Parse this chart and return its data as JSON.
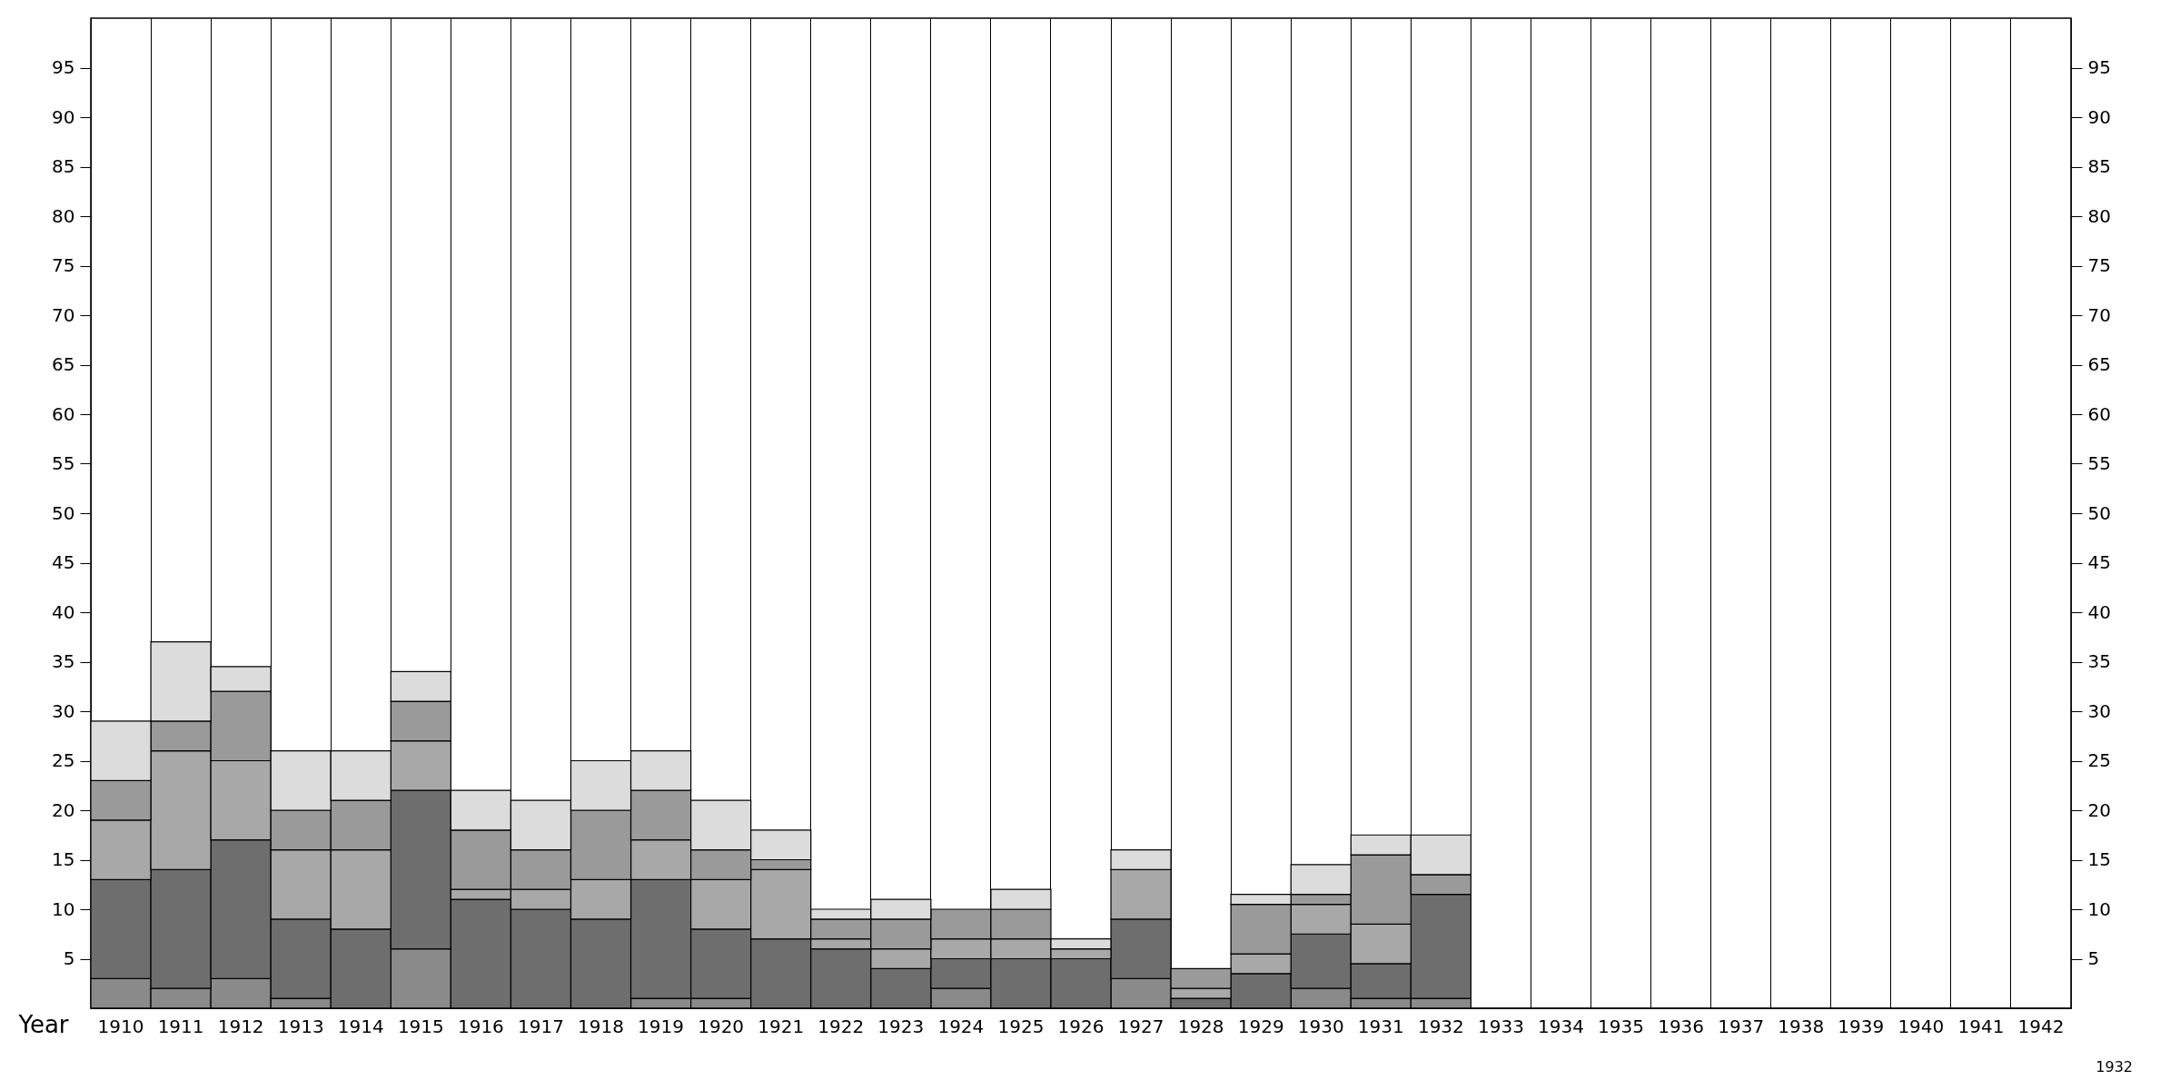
{
  "chart_data": {
    "type": "bar",
    "stacked": true,
    "xlabel": "Year",
    "categories": [
      "1910",
      "1911",
      "1912",
      "1913",
      "1914",
      "1915",
      "1916",
      "1917",
      "1918",
      "1919",
      "1920",
      "1921",
      "1922",
      "1923",
      "1924",
      "1925",
      "1926",
      "1927",
      "1928",
      "1929",
      "1930",
      "1931",
      "1932",
      "1933",
      "1934",
      "1935",
      "1936",
      "1937",
      "1938",
      "1939",
      "1940",
      "1941",
      "1942"
    ],
    "series": [
      {
        "color": "#8a8a8a",
        "values": [
          3,
          2,
          3,
          1,
          null,
          6,
          null,
          null,
          null,
          1,
          1,
          null,
          null,
          null,
          2,
          null,
          null,
          3,
          null,
          null,
          2,
          1,
          1,
          null,
          null,
          null,
          null,
          null,
          null,
          null,
          null,
          null,
          null
        ]
      },
      {
        "color": "#6e6e6e",
        "values": [
          10,
          12,
          14,
          8,
          8,
          16,
          11,
          10,
          9,
          12,
          7,
          7,
          6,
          4,
          3,
          5,
          5,
          6,
          1,
          3.5,
          5.5,
          3.5,
          10.5,
          null,
          null,
          null,
          null,
          null,
          null,
          null,
          null,
          null,
          null
        ]
      },
      {
        "color": "#a8a8a8",
        "values": [
          6,
          12,
          8,
          7,
          8,
          5,
          1,
          2,
          4,
          4,
          5,
          7,
          1,
          2,
          2,
          2,
          1,
          5,
          1,
          2,
          3,
          4,
          null,
          null,
          null,
          null,
          null,
          null,
          null,
          null,
          null,
          null,
          null
        ]
      },
      {
        "color": "#9a9a9a",
        "values": [
          4,
          3,
          7,
          4,
          5,
          4,
          6,
          4,
          7,
          5,
          3,
          1,
          2,
          3,
          3,
          3,
          null,
          null,
          2,
          5,
          1,
          7,
          2,
          null,
          null,
          null,
          null,
          null,
          null,
          null,
          null,
          null,
          null
        ]
      },
      {
        "color": "#dcdcdc",
        "values": [
          6,
          8,
          2.5,
          6,
          5,
          3,
          4,
          5,
          5,
          4,
          5,
          3,
          1,
          2,
          null,
          2,
          1,
          2,
          null,
          1,
          3,
          2,
          4,
          null,
          null,
          null,
          null,
          null,
          null,
          null,
          null,
          null,
          null
        ]
      }
    ],
    "ylim": [
      0,
      100
    ],
    "yticks": [
      5,
      10,
      15,
      20,
      25,
      30,
      35,
      40,
      45,
      50,
      55,
      60,
      65,
      70,
      75,
      80,
      85,
      90,
      95
    ],
    "y2lim": [
      0,
      100
    ],
    "y2ticks": [
      5,
      10,
      15,
      20,
      25,
      30,
      35,
      40,
      45,
      50,
      55,
      60,
      65,
      70,
      75,
      80,
      85,
      90,
      95
    ],
    "grid": "x",
    "annotations": [
      "1932"
    ]
  }
}
